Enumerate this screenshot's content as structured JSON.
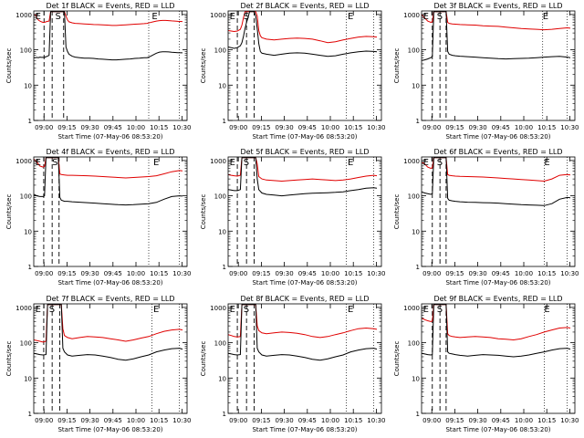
{
  "colors": {
    "events": "#000000",
    "lld": "#e00000",
    "axes": "#000000",
    "background": "#ffffff"
  },
  "shared": {
    "ylabel": "Counts/sec",
    "xlabel": "Start Time (07-May-06 08:53:20)",
    "yticks": [
      "1",
      "10",
      "100",
      "1000"
    ],
    "xticks": [
      "09:00",
      "09:15",
      "09:30",
      "09:45",
      "10:00",
      "10:15",
      "10:30"
    ],
    "marker_e": "E",
    "marker_s": "S"
  },
  "chart_data": [
    {
      "type": "line",
      "title": "Det 1f BLACK = Events, RED = LLD",
      "x_minutes_since_start": [
        0,
        1,
        2,
        3,
        4,
        5,
        6,
        7,
        7.5,
        8,
        9,
        10,
        11,
        12,
        13,
        14,
        15,
        16,
        17,
        18,
        19,
        20,
        21,
        22,
        23,
        25,
        27,
        30,
        33,
        36,
        39,
        42,
        45,
        48,
        51,
        54,
        57,
        60,
        63,
        66,
        69,
        72,
        74,
        76,
        78,
        80,
        82,
        84,
        86,
        88,
        90,
        92,
        94,
        97
      ],
      "events": [
        60,
        60,
        61,
        60,
        62,
        61,
        61,
        62,
        62,
        64,
        66,
        70,
        1200,
        1200,
        1200,
        1200,
        1200,
        1200,
        1200,
        1200,
        1200,
        1200,
        120,
        90,
        75,
        66,
        62,
        60,
        58,
        58,
        57,
        55,
        54,
        53,
        52,
        52,
        53,
        54,
        55,
        57,
        58,
        60,
        60,
        65,
        72,
        80,
        86,
        88,
        88,
        87,
        85,
        84,
        83,
        82
      ],
      "lld": [
        1000,
        1000,
        800,
        700,
        650,
        620,
        600,
        600,
        610,
        620,
        640,
        650,
        1200,
        1200,
        1200,
        1200,
        1200,
        1200,
        1200,
        1200,
        1200,
        1200,
        900,
        700,
        620,
        580,
        560,
        550,
        540,
        530,
        520,
        515,
        510,
        500,
        490,
        490,
        500,
        510,
        520,
        530,
        540,
        550,
        560,
        590,
        620,
        650,
        670,
        680,
        680,
        670,
        660,
        650,
        640,
        630
      ],
      "ylim": [
        1,
        1000
      ],
      "yscale": "log",
      "vlines_dashed": [
        6.7,
        12,
        19.5
      ],
      "vlines_dotted": [
        75,
        95
      ],
      "markers": {
        "E1": 1,
        "S": 14,
        "E2": 77
      }
    },
    {
      "type": "line",
      "title": "Det 2f BLACK = Events, RED = LLD",
      "x_minutes_since_start": [
        0,
        2,
        4,
        6,
        8,
        9,
        10,
        11,
        12,
        13,
        14,
        15,
        16,
        17,
        18,
        19,
        20,
        21,
        22,
        25,
        30,
        35,
        40,
        45,
        50,
        55,
        60,
        65,
        70,
        75,
        80,
        85,
        90,
        95,
        97
      ],
      "events": [
        120,
        115,
        110,
        115,
        130,
        160,
        240,
        400,
        600,
        800,
        1200,
        1200,
        1200,
        1200,
        900,
        400,
        150,
        90,
        80,
        75,
        70,
        75,
        80,
        82,
        80,
        75,
        70,
        65,
        68,
        75,
        82,
        88,
        92,
        90,
        88
      ],
      "lld": [
        350,
        340,
        330,
        340,
        380,
        500,
        800,
        1200,
        1200,
        1200,
        1200,
        1200,
        1200,
        1200,
        1200,
        900,
        350,
        250,
        220,
        200,
        190,
        200,
        210,
        215,
        210,
        200,
        180,
        160,
        170,
        190,
        210,
        230,
        240,
        235,
        230
      ],
      "ylim": [
        1,
        1000
      ],
      "yscale": "log",
      "vlines_dashed": [
        6,
        12,
        17
      ],
      "vlines_dotted": [
        77,
        95
      ],
      "markers": {
        "E1": 1,
        "S": 10,
        "E2": 78
      }
    },
    {
      "type": "line",
      "title": "Det 3f BLACK = Events, RED = LLD",
      "x_minutes_since_start": [
        0,
        2,
        4,
        6,
        7,
        8,
        9,
        10,
        11,
        12,
        13,
        14,
        15,
        16,
        17,
        18,
        20,
        22,
        25,
        30,
        35,
        40,
        45,
        50,
        55,
        60,
        65,
        70,
        75,
        80,
        85,
        90,
        95,
        97
      ],
      "events": [
        50,
        52,
        55,
        60,
        65,
        1200,
        1200,
        1200,
        1200,
        1200,
        1200,
        1200,
        1200,
        1200,
        90,
        75,
        70,
        68,
        66,
        64,
        62,
        60,
        58,
        56,
        55,
        56,
        57,
        58,
        60,
        62,
        64,
        65,
        62,
        60
      ],
      "lld": [
        1000,
        800,
        650,
        600,
        620,
        1200,
        1200,
        1200,
        1200,
        1200,
        1200,
        1200,
        1200,
        1200,
        600,
        560,
        540,
        530,
        520,
        510,
        500,
        480,
        470,
        460,
        440,
        420,
        400,
        390,
        380,
        370,
        380,
        400,
        420,
        410
      ],
      "ylim": [
        1,
        1000
      ],
      "yscale": "log",
      "vlines_dashed": [
        7,
        12,
        16
      ],
      "vlines_dotted": [
        79,
        95
      ],
      "markers": {
        "E1": 1,
        "S": 10,
        "E2": 79
      }
    },
    {
      "type": "line",
      "title": "Det 4f BLACK = Events, RED = LLD",
      "x_minutes_since_start": [
        0,
        2,
        4,
        6,
        7,
        8,
        9,
        10,
        11,
        12,
        13,
        14,
        15,
        16,
        17,
        18,
        20,
        22,
        25,
        30,
        35,
        40,
        45,
        50,
        55,
        60,
        65,
        70,
        75,
        80,
        85,
        90,
        95,
        97
      ],
      "events": [
        110,
        100,
        95,
        95,
        100,
        1200,
        1200,
        1200,
        1200,
        1200,
        1200,
        1200,
        1200,
        1200,
        90,
        75,
        70,
        70,
        68,
        66,
        64,
        62,
        60,
        58,
        56,
        55,
        56,
        58,
        60,
        65,
        80,
        95,
        100,
        98
      ],
      "lld": [
        1100,
        900,
        700,
        650,
        680,
        1200,
        1200,
        1200,
        1200,
        1200,
        1200,
        1200,
        1200,
        1200,
        420,
        400,
        390,
        380,
        380,
        375,
        370,
        360,
        350,
        340,
        330,
        320,
        330,
        340,
        350,
        370,
        420,
        480,
        520,
        510
      ],
      "ylim": [
        1,
        1000
      ],
      "yscale": "log",
      "vlines_dashed": [
        6.5,
        12,
        16.5
      ],
      "vlines_dotted": [
        75,
        95
      ],
      "markers": {
        "E1": 1,
        "S": 12,
        "E2": 78
      }
    },
    {
      "type": "line",
      "title": "Det 5f BLACK = Events, RED = LLD",
      "x_minutes_since_start": [
        0,
        2,
        4,
        6,
        8,
        9,
        10,
        11,
        12,
        13,
        14,
        15,
        16,
        17,
        18,
        19,
        20,
        22,
        25,
        30,
        35,
        40,
        45,
        50,
        55,
        60,
        65,
        70,
        75,
        80,
        85,
        90,
        95,
        97
      ],
      "events": [
        150,
        145,
        140,
        140,
        150,
        1200,
        1200,
        1200,
        1200,
        1200,
        1200,
        1200,
        1200,
        1200,
        1200,
        300,
        150,
        120,
        110,
        105,
        100,
        105,
        110,
        115,
        118,
        120,
        122,
        125,
        130,
        140,
        150,
        165,
        170,
        165
      ],
      "lld": [
        400,
        380,
        370,
        360,
        380,
        1200,
        1200,
        1200,
        1200,
        1200,
        1200,
        1200,
        1200,
        1200,
        1200,
        800,
        350,
        300,
        280,
        270,
        260,
        270,
        280,
        290,
        300,
        290,
        280,
        270,
        280,
        300,
        330,
        360,
        380,
        370
      ],
      "ylim": [
        1,
        1000
      ],
      "yscale": "log",
      "vlines_dashed": [
        6,
        12,
        17
      ],
      "vlines_dotted": [
        77,
        95
      ],
      "markers": {
        "E1": 1,
        "S": 10,
        "E2": 78
      }
    },
    {
      "type": "line",
      "title": "Det 6f BLACK = Events, RED = LLD",
      "x_minutes_since_start": [
        0,
        2,
        4,
        6,
        7,
        8,
        9,
        10,
        11,
        12,
        13,
        14,
        15,
        16,
        17,
        18,
        20,
        22,
        25,
        30,
        35,
        40,
        45,
        50,
        55,
        60,
        65,
        70,
        75,
        80,
        85,
        90,
        95,
        97
      ],
      "events": [
        130,
        120,
        115,
        110,
        115,
        1200,
        1200,
        1200,
        1200,
        1200,
        1200,
        1200,
        1200,
        1200,
        85,
        75,
        72,
        70,
        68,
        66,
        65,
        64,
        63,
        62,
        60,
        58,
        56,
        55,
        54,
        53,
        60,
        80,
        90,
        88
      ],
      "lld": [
        900,
        800,
        650,
        600,
        620,
        1200,
        1200,
        1200,
        1200,
        1200,
        1200,
        1200,
        1200,
        1200,
        400,
        380,
        370,
        360,
        355,
        350,
        345,
        340,
        330,
        320,
        310,
        300,
        290,
        280,
        270,
        260,
        300,
        380,
        400,
        390
      ],
      "ylim": [
        1,
        1000
      ],
      "yscale": "log",
      "vlines_dashed": [
        7,
        12,
        16
      ],
      "vlines_dotted": [
        80,
        95
      ],
      "markers": {
        "E1": 1,
        "S": 10,
        "E2": 80
      }
    },
    {
      "type": "line",
      "title": "Det 7f BLACK = Events, RED = LLD",
      "x_minutes_since_start": [
        0,
        2,
        4,
        6,
        8,
        9,
        10,
        11,
        12,
        13,
        14,
        15,
        16,
        17,
        18,
        19,
        20,
        22,
        25,
        30,
        35,
        40,
        45,
        50,
        55,
        60,
        65,
        70,
        75,
        80,
        85,
        90,
        95,
        97
      ],
      "events": [
        50,
        48,
        46,
        45,
        46,
        1200,
        1200,
        1200,
        1200,
        1200,
        1200,
        1200,
        1200,
        1200,
        1200,
        70,
        55,
        45,
        42,
        44,
        46,
        45,
        42,
        38,
        34,
        32,
        35,
        40,
        45,
        55,
        62,
        68,
        70,
        66
      ],
      "lld": [
        120,
        115,
        110,
        105,
        110,
        1200,
        1200,
        1200,
        1200,
        1200,
        1200,
        1200,
        1200,
        1200,
        1200,
        250,
        160,
        140,
        130,
        140,
        150,
        145,
        140,
        130,
        120,
        110,
        120,
        135,
        150,
        180,
        210,
        230,
        240,
        230
      ],
      "ylim": [
        1,
        1000
      ],
      "yscale": "log",
      "vlines_dashed": [
        6.5,
        12,
        17
      ],
      "vlines_dotted": [
        77,
        95
      ],
      "markers": {
        "E1": 1,
        "S": 10,
        "E2": 78
      }
    },
    {
      "type": "line",
      "title": "Det 8f BLACK = Events, RED = LLD",
      "x_minutes_since_start": [
        0,
        2,
        4,
        6,
        8,
        9,
        10,
        11,
        12,
        13,
        14,
        15,
        16,
        17,
        18,
        19,
        20,
        22,
        25,
        30,
        35,
        40,
        45,
        50,
        55,
        60,
        65,
        70,
        75,
        80,
        85,
        90,
        95,
        97
      ],
      "events": [
        50,
        48,
        46,
        45,
        46,
        1200,
        1200,
        1200,
        1200,
        1200,
        1200,
        1200,
        1200,
        1200,
        1200,
        70,
        55,
        45,
        42,
        44,
        46,
        45,
        42,
        38,
        34,
        32,
        35,
        40,
        45,
        55,
        62,
        68,
        70,
        66
      ],
      "lld": [
        170,
        160,
        150,
        145,
        150,
        1200,
        1200,
        1200,
        1200,
        1200,
        1200,
        1200,
        1200,
        1200,
        1200,
        300,
        220,
        190,
        180,
        190,
        200,
        195,
        185,
        170,
        150,
        140,
        150,
        170,
        190,
        220,
        250,
        260,
        250,
        240
      ],
      "ylim": [
        1,
        1000
      ],
      "yscale": "log",
      "vlines_dashed": [
        6,
        12,
        17
      ],
      "vlines_dotted": [
        77,
        95
      ],
      "markers": {
        "E1": 1,
        "S": 10,
        "E2": 78
      }
    },
    {
      "type": "line",
      "title": "Det 9f BLACK = Events, RED = LLD",
      "x_minutes_since_start": [
        0,
        2,
        4,
        6,
        7,
        8,
        9,
        10,
        11,
        12,
        13,
        14,
        15,
        16,
        17,
        18,
        20,
        22,
        25,
        30,
        35,
        40,
        45,
        50,
        55,
        60,
        65,
        70,
        75,
        80,
        85,
        90,
        95,
        97
      ],
      "events": [
        50,
        48,
        46,
        45,
        46,
        1200,
        1200,
        1200,
        1200,
        1200,
        1200,
        1200,
        1200,
        1200,
        55,
        50,
        48,
        46,
        44,
        42,
        44,
        46,
        45,
        44,
        42,
        40,
        42,
        45,
        50,
        55,
        62,
        68,
        70,
        66
      ],
      "lld": [
        500,
        450,
        420,
        400,
        410,
        1200,
        1200,
        1200,
        1200,
        1200,
        1200,
        1200,
        1200,
        1200,
        180,
        160,
        150,
        145,
        140,
        145,
        150,
        145,
        140,
        130,
        125,
        120,
        130,
        150,
        170,
        200,
        230,
        260,
        270,
        260
      ],
      "ylim": [
        1,
        1000
      ],
      "yscale": "log",
      "vlines_dashed": [
        7,
        12,
        16
      ],
      "vlines_dotted": [
        80,
        95
      ],
      "markers": {
        "E1": 1,
        "S": 10,
        "E2": 80
      }
    }
  ]
}
